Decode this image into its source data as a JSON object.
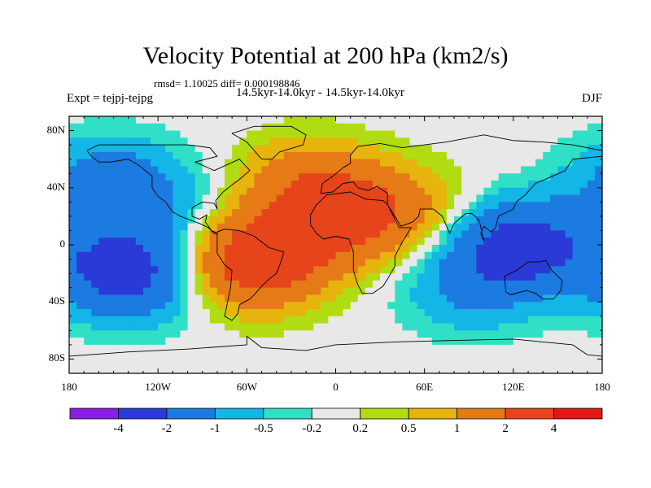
{
  "chart_data": {
    "type": "heatmap",
    "title": "Velocity Potential at 200 hPa (km2/s)",
    "stats_line": "rmsd= 1.10025 diff= 0.000198846",
    "subtitle": "14.5kyr-14.0kyr - 14.5kyr-14.0kyr",
    "experiment": "Expt = tejpj-tejpg",
    "season": "DJF",
    "xlim": [
      -180,
      180
    ],
    "ylim": [
      -90,
      90
    ],
    "x_ticks": [
      {
        "value": -180,
        "label": "180"
      },
      {
        "value": -120,
        "label": "120W"
      },
      {
        "value": -60,
        "label": "60W"
      },
      {
        "value": 0,
        "label": "0"
      },
      {
        "value": 60,
        "label": "60E"
      },
      {
        "value": 120,
        "label": "120E"
      },
      {
        "value": 180,
        "label": "180"
      }
    ],
    "y_ticks": [
      {
        "value": 80,
        "label": "80N"
      },
      {
        "value": 40,
        "label": "40N"
      },
      {
        "value": 0,
        "label": "0"
      },
      {
        "value": -40,
        "label": "40S"
      },
      {
        "value": -80,
        "label": "80S"
      }
    ],
    "colorbar": {
      "levels": [
        -4,
        -2,
        -1,
        -0.5,
        -0.2,
        0.2,
        0.5,
        1,
        2,
        4
      ],
      "level_labels": [
        "-4",
        "-2",
        "-1",
        "-0.5",
        "-0.2",
        "0.2",
        "0.5",
        "1",
        "2",
        "4"
      ],
      "colors": [
        "#8a1ee6",
        "#2a3ad6",
        "#1b7be0",
        "#13b6e6",
        "#2fe0c6",
        "#e8e8e8",
        "#b2dc12",
        "#e6b40c",
        "#e67a16",
        "#e6441a",
        "#e01818"
      ]
    },
    "field_centers": [
      {
        "name": "south-america-maximum",
        "lon": -55,
        "lat": -12,
        "value": 3.0
      },
      {
        "name": "north-africa-maximum",
        "lon": 0,
        "lat": 18,
        "value": 2.0
      },
      {
        "name": "atlantic-europe-positive",
        "lon": -20,
        "lat": 45,
        "value": 1.2
      },
      {
        "name": "arabia-positive",
        "lon": 45,
        "lat": 25,
        "value": 1.0
      },
      {
        "name": "maritime-continent-minimum",
        "lon": 125,
        "lat": 0,
        "value": -2.5
      },
      {
        "name": "south-pacific-minimum",
        "lon": -140,
        "lat": -20,
        "value": -2.6
      },
      {
        "name": "north-pacific-negative",
        "lon": -155,
        "lat": 45,
        "value": -1.3
      },
      {
        "name": "indian-ocean-negative",
        "lon": 90,
        "lat": -30,
        "value": -1.0
      },
      {
        "name": "north-atlantic-negative",
        "lon": -120,
        "lat": 25,
        "value": -0.7
      }
    ]
  }
}
